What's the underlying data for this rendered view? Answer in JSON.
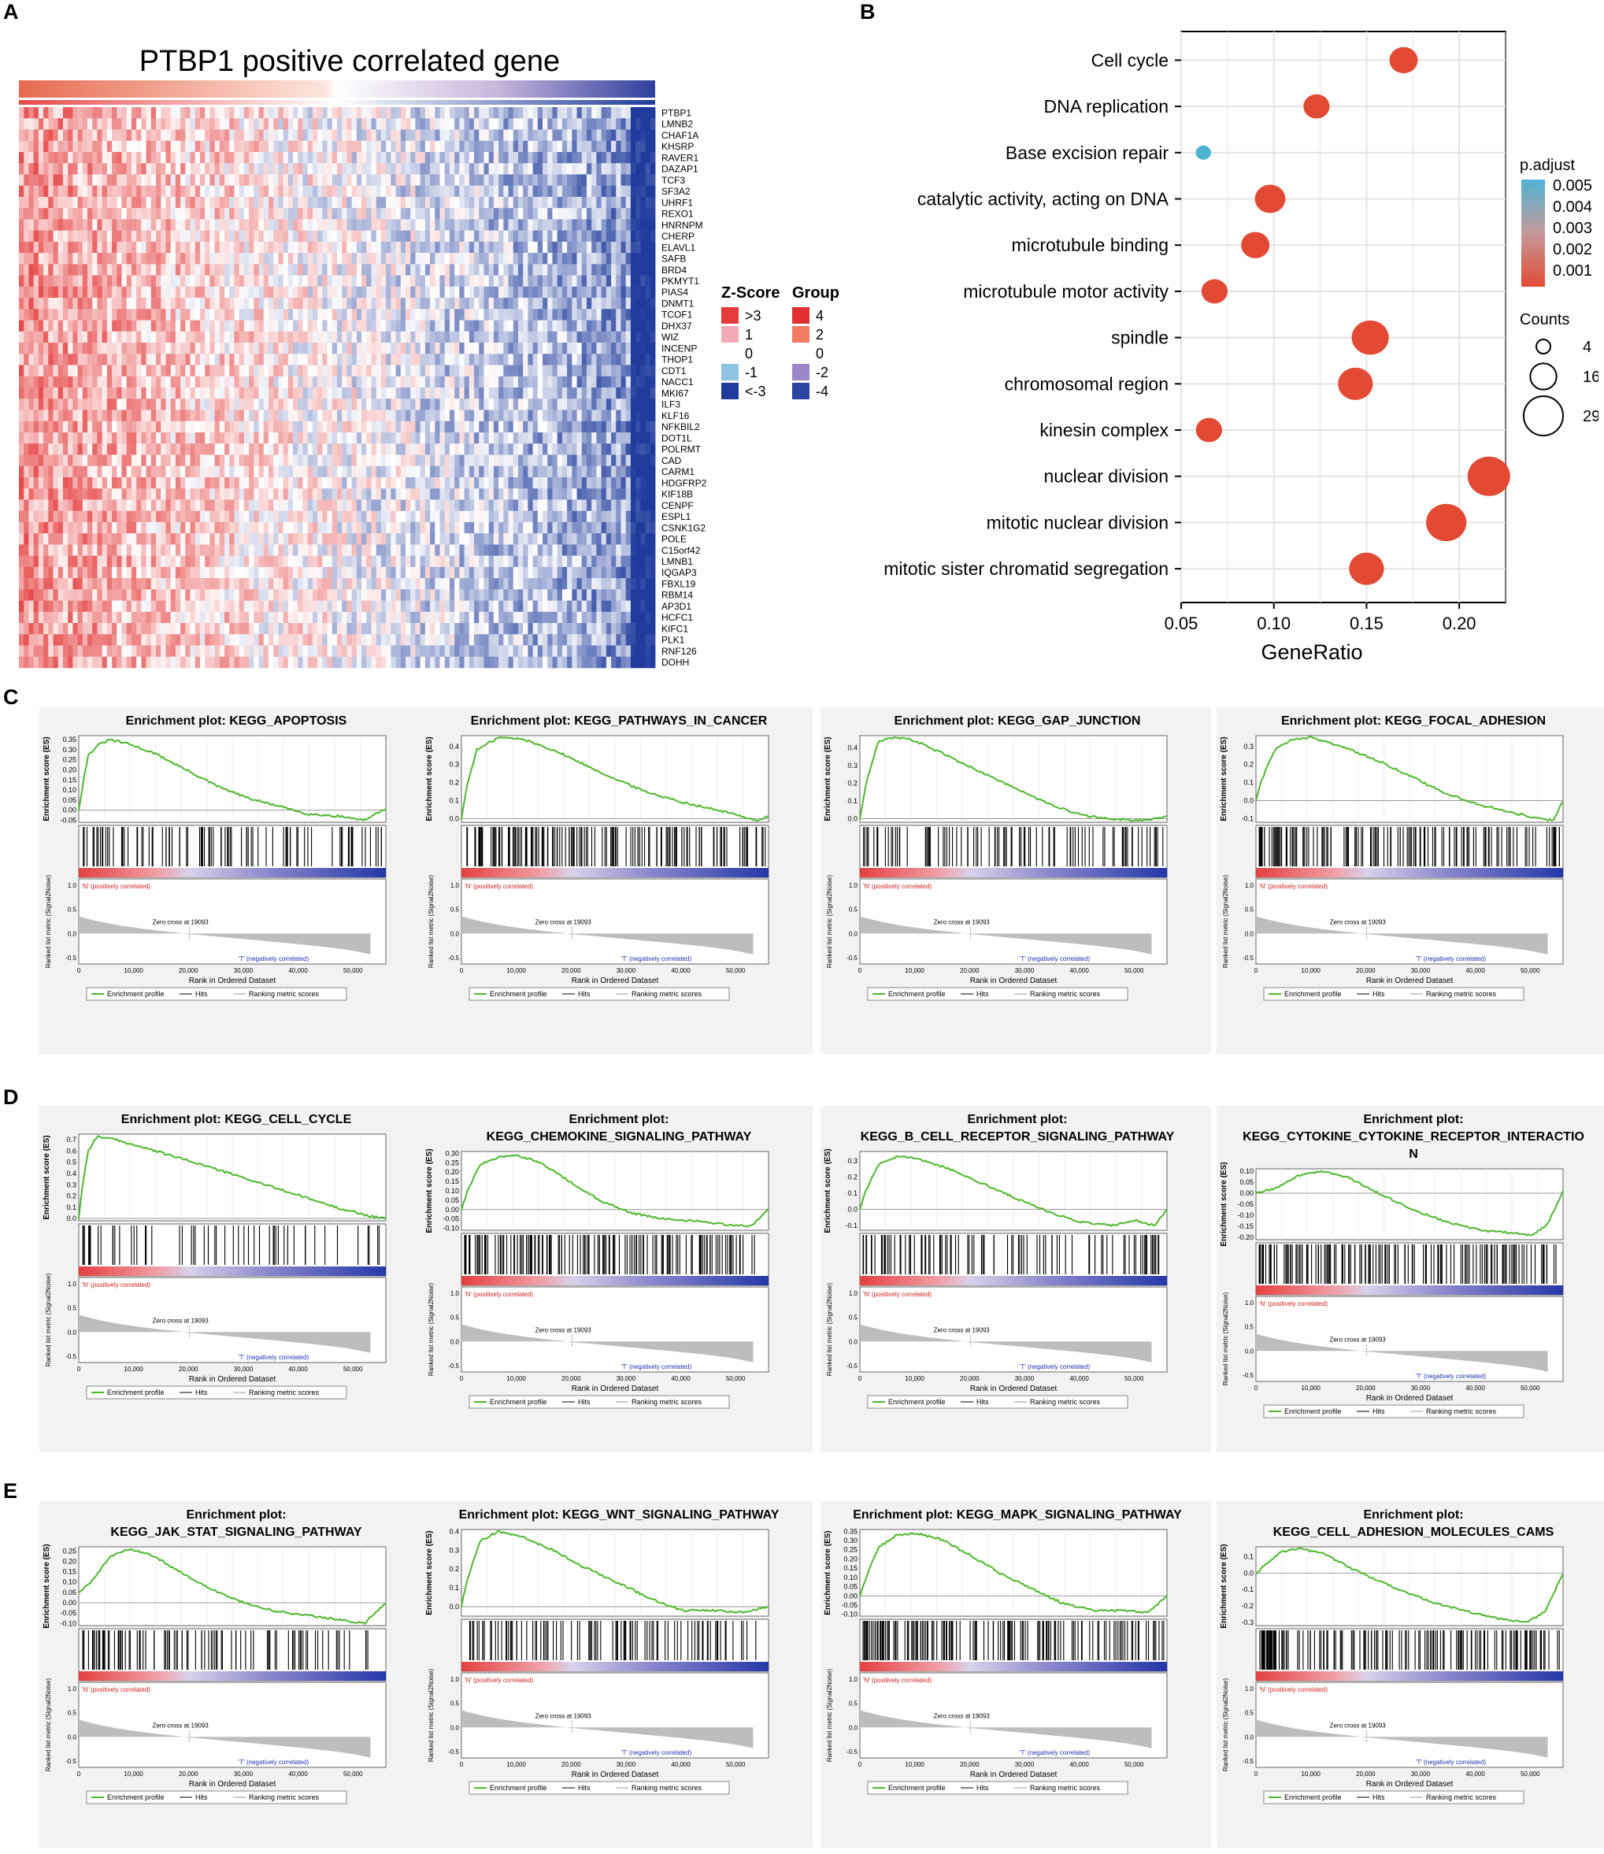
{
  "panel_labels": {
    "A": "A",
    "B": "B",
    "C": "C",
    "D": "D",
    "E": "E"
  },
  "colors": {
    "heat_red": "#e43b3b",
    "heat_pink": "#f4a9b6",
    "heat_white": "#ffffff",
    "heat_lightblue": "#8fc3e3",
    "heat_blue": "#1f3c9c",
    "dot_low": "#e34a33",
    "dot_high": "#4eb3d3",
    "gsea_green": "#4db82b",
    "gsea_bar_gray": "#bdbdbd"
  },
  "chart_data": [
    {
      "id": "A",
      "type": "heatmap",
      "title": "PTBP1 positive correlated gene",
      "genes": [
        "PTBP1",
        "LMNB2",
        "CHAF1A",
        "KHSRP",
        "RAVER1",
        "DAZAP1",
        "TCF3",
        "SF3A2",
        "UHRF1",
        "REXO1",
        "HNRNPM",
        "CHERP",
        "ELAVL1",
        "SAFB",
        "BRD4",
        "PKMYT1",
        "PIAS4",
        "DNMT1",
        "TCOF1",
        "DHX37",
        "WIZ",
        "INCENP",
        "THOP1",
        "CDT1",
        "NACC1",
        "MKI67",
        "ILF3",
        "KLF16",
        "NFKBIL2",
        "DOT1L",
        "POLRMT",
        "CAD",
        "CARM1",
        "HDGFRP2",
        "KIF18B",
        "CENPF",
        "ESPL1",
        "CSNK1G2",
        "POLE",
        "C15orf42",
        "LMNB1",
        "IQGAP3",
        "FBXL19",
        "RBM14",
        "AP3D1",
        "HCFC1",
        "KIFC1",
        "PLK1",
        "RNF126",
        "DOHH"
      ],
      "legend_zscore": {
        "title": "Z-Score",
        "labels": [
          ">3",
          "1",
          "0",
          "-1",
          "<-3"
        ]
      },
      "legend_group": {
        "title": "Group",
        "labels": [
          "4",
          "2",
          "0",
          "-2",
          "-4"
        ]
      }
    },
    {
      "id": "B",
      "type": "scatter",
      "xlabel": "GeneRatio",
      "xlim": [
        0.05,
        0.225
      ],
      "xticks": [
        "0.05",
        "0.10",
        "0.15",
        "0.20"
      ],
      "categories": [
        "Cell cycle",
        "DNA replication",
        "Base excision repair",
        "catalytic activity, acting on DNA",
        "microtubule binding",
        "microtubule motor activity",
        "spindle",
        "chromosomal region",
        "kinesin complex",
        "nuclear division",
        "mitotic nuclear division",
        "mitotic sister chromatid segregation"
      ],
      "gene_ratio": [
        0.17,
        0.123,
        0.062,
        0.098,
        0.09,
        0.068,
        0.152,
        0.144,
        0.065,
        0.216,
        0.193,
        0.15
      ],
      "counts": [
        16,
        14,
        4,
        18,
        16,
        14,
        24,
        22,
        14,
        29,
        27,
        22
      ],
      "p_adjust": [
        0.0005,
        0.0005,
        0.005,
        0.0005,
        0.0005,
        0.0005,
        0.0005,
        0.0005,
        0.0005,
        0.0005,
        0.0005,
        0.0005
      ],
      "legend_color": {
        "title": "p.adjust",
        "labels": [
          "0.005",
          "0.004",
          "0.003",
          "0.002",
          "0.001"
        ]
      },
      "legend_size": {
        "title": "Counts",
        "labels": [
          "4",
          "16",
          "29"
        ]
      }
    }
  ],
  "gsea_common": {
    "ylabel_es": "Enrichment score (ES)",
    "ylabel_metric": "Ranked list metric (Signal2Noise)",
    "xlabel": "Rank in Ordered Dataset",
    "xticks": [
      "0",
      "10,000",
      "20,000",
      "30,000",
      "40,000",
      "50,000"
    ],
    "metric_ticks": [
      "1.0",
      "0.5",
      "0.0",
      "-0.5"
    ],
    "pos_label": "'N' (positively correlated)",
    "neg_label": "'T' (negatively correlated)",
    "zero_cross": "Zero cross at 19093",
    "legend": [
      "Enrichment profile",
      "Hits",
      "Ranking metric scores"
    ]
  },
  "gsea_plots": [
    {
      "panel": "C",
      "title_lines": [
        "Enrichment plot: KEGG_APOPTOSIS"
      ],
      "es_ticks": [
        "0.35",
        "0.30",
        "0.25",
        "0.20",
        "0.15",
        "0.10",
        "0.05",
        "0.00",
        "-0.05"
      ],
      "ymin": -0.06,
      "ymax": 0.37,
      "curve": [
        [
          0,
          0.0
        ],
        [
          1,
          0.1
        ],
        [
          3,
          0.27
        ],
        [
          6,
          0.32
        ],
        [
          10,
          0.35
        ],
        [
          16,
          0.33
        ],
        [
          25,
          0.28
        ],
        [
          35,
          0.2
        ],
        [
          45,
          0.12
        ],
        [
          55,
          0.06
        ],
        [
          65,
          0.02
        ],
        [
          75,
          -0.02
        ],
        [
          85,
          -0.03
        ],
        [
          93,
          -0.05
        ],
        [
          100,
          0.01
        ]
      ],
      "hit_density": "medium",
      "zero_cross": "Zero cross at 19093"
    },
    {
      "panel": "C",
      "title_lines": [
        "Enrichment plot: KEGG_PATHWAYS_IN_CANCER"
      ],
      "es_ticks": [
        "0.4",
        "0.3",
        "0.2",
        "0.1",
        "0.0"
      ],
      "ymin": -0.02,
      "ymax": 0.46,
      "curve": [
        [
          0,
          0.0
        ],
        [
          2,
          0.2
        ],
        [
          5,
          0.38
        ],
        [
          12,
          0.45
        ],
        [
          20,
          0.44
        ],
        [
          30,
          0.38
        ],
        [
          40,
          0.3
        ],
        [
          50,
          0.22
        ],
        [
          60,
          0.15
        ],
        [
          70,
          0.1
        ],
        [
          80,
          0.06
        ],
        [
          90,
          0.02
        ],
        [
          96,
          -0.01
        ],
        [
          100,
          0.01
        ]
      ],
      "hit_density": "dense",
      "zero_cross": "Zero cross at 19093"
    },
    {
      "panel": "C",
      "title_lines": [
        "Enrichment plot: KEGG_GAP_JUNCTION"
      ],
      "es_ticks": [
        "0.4",
        "0.3",
        "0.2",
        "0.1",
        "0.0"
      ],
      "ymin": -0.02,
      "ymax": 0.47,
      "curve": [
        [
          0,
          0.0
        ],
        [
          2,
          0.2
        ],
        [
          6,
          0.44
        ],
        [
          12,
          0.46
        ],
        [
          18,
          0.44
        ],
        [
          28,
          0.36
        ],
        [
          40,
          0.26
        ],
        [
          52,
          0.16
        ],
        [
          62,
          0.08
        ],
        [
          72,
          0.02
        ],
        [
          82,
          0.0
        ],
        [
          92,
          -0.01
        ],
        [
          100,
          0.01
        ]
      ],
      "hit_density": "medium",
      "zero_cross": "Zero cross at 19093"
    },
    {
      "panel": "C",
      "title_lines": [
        "Enrichment plot: KEGG_FOCAL_ADHESION"
      ],
      "es_ticks": [
        "0.3",
        "0.2",
        "0.1",
        "0.0",
        "-0.1"
      ],
      "ymin": -0.12,
      "ymax": 0.36,
      "curve": [
        [
          0,
          0.0
        ],
        [
          2,
          0.12
        ],
        [
          6,
          0.28
        ],
        [
          12,
          0.34
        ],
        [
          18,
          0.35
        ],
        [
          28,
          0.3
        ],
        [
          40,
          0.22
        ],
        [
          52,
          0.12
        ],
        [
          62,
          0.04
        ],
        [
          72,
          -0.02
        ],
        [
          82,
          -0.06
        ],
        [
          92,
          -0.1
        ],
        [
          97,
          -0.11
        ],
        [
          100,
          0.0
        ]
      ],
      "hit_density": "dense",
      "zero_cross": "Zero cross at 19093"
    },
    {
      "panel": "D",
      "title_lines": [
        "Enrichment plot: KEGG_CELL_CYCLE"
      ],
      "es_ticks": [
        "0.7",
        "0.6",
        "0.5",
        "0.4",
        "0.3",
        "0.2",
        "0.1",
        "0.0"
      ],
      "ymin": -0.02,
      "ymax": 0.75,
      "curve": [
        [
          0,
          0.0
        ],
        [
          1,
          0.25
        ],
        [
          3,
          0.6
        ],
        [
          6,
          0.73
        ],
        [
          12,
          0.7
        ],
        [
          25,
          0.6
        ],
        [
          40,
          0.48
        ],
        [
          55,
          0.35
        ],
        [
          70,
          0.22
        ],
        [
          85,
          0.09
        ],
        [
          95,
          0.02
        ],
        [
          100,
          0.0
        ]
      ],
      "hit_density": "sparse",
      "zero_cross": "Zero cross at 19093"
    },
    {
      "panel": "D",
      "title_lines": [
        "Enrichment plot:",
        "KEGG_CHEMOKINE_SIGNALING_PATHWAY"
      ],
      "es_ticks": [
        "0.30",
        "0.25",
        "0.20",
        "0.15",
        "0.10",
        "0.05",
        "0.00",
        "-0.05",
        "-0.10"
      ],
      "ymin": -0.11,
      "ymax": 0.31,
      "curve": [
        [
          0,
          0.0
        ],
        [
          2,
          0.1
        ],
        [
          6,
          0.24
        ],
        [
          12,
          0.28
        ],
        [
          18,
          0.29
        ],
        [
          26,
          0.25
        ],
        [
          36,
          0.14
        ],
        [
          46,
          0.04
        ],
        [
          56,
          -0.02
        ],
        [
          66,
          -0.05
        ],
        [
          76,
          -0.06
        ],
        [
          86,
          -0.08
        ],
        [
          94,
          -0.09
        ],
        [
          100,
          0.0
        ]
      ],
      "hit_density": "dense",
      "zero_cross": "Zero cross at 19093"
    },
    {
      "panel": "D",
      "title_lines": [
        "Enrichment plot:",
        "KEGG_B_CELL_RECEPTOR_SIGNALING_PATHWAY"
      ],
      "es_ticks": [
        "0.3",
        "0.2",
        "0.1",
        "0.0",
        "-0.1"
      ],
      "ymin": -0.13,
      "ymax": 0.36,
      "curve": [
        [
          0,
          0.0
        ],
        [
          2,
          0.12
        ],
        [
          6,
          0.28
        ],
        [
          12,
          0.33
        ],
        [
          18,
          0.32
        ],
        [
          28,
          0.26
        ],
        [
          40,
          0.16
        ],
        [
          52,
          0.06
        ],
        [
          62,
          -0.02
        ],
        [
          72,
          -0.08
        ],
        [
          82,
          -0.1
        ],
        [
          90,
          -0.07
        ],
        [
          96,
          -0.1
        ],
        [
          100,
          0.0
        ]
      ],
      "hit_density": "medium",
      "zero_cross": "Zero cross at 19093"
    },
    {
      "panel": "D",
      "title_lines": [
        "Enrichment plot:",
        "KEGG_CYTOKINE_CYTOKINE_RECEPTOR_INTERACTIO",
        "N"
      ],
      "es_ticks": [
        "0.10",
        "0.05",
        "0.00",
        "-0.05",
        "-0.10",
        "-0.15",
        "-0.20"
      ],
      "ymin": -0.21,
      "ymax": 0.11,
      "curve": [
        [
          0,
          0.0
        ],
        [
          6,
          0.02
        ],
        [
          14,
          0.08
        ],
        [
          22,
          0.1
        ],
        [
          30,
          0.07
        ],
        [
          40,
          0.0
        ],
        [
          52,
          -0.08
        ],
        [
          62,
          -0.13
        ],
        [
          74,
          -0.17
        ],
        [
          84,
          -0.18
        ],
        [
          90,
          -0.19
        ],
        [
          95,
          -0.14
        ],
        [
          100,
          0.01
        ]
      ],
      "hit_density": "dense",
      "zero_cross": "Zero cross at 19093"
    },
    {
      "panel": "E",
      "title_lines": [
        "Enrichment plot:",
        "KEGG_JAK_STAT_SIGNALING_PATHWAY"
      ],
      "es_ticks": [
        "0.25",
        "0.20",
        "0.15",
        "0.10",
        "0.05",
        "0.00",
        "-0.05",
        "-0.10"
      ],
      "ymin": -0.11,
      "ymax": 0.27,
      "curve": [
        [
          0,
          0.05
        ],
        [
          4,
          0.1
        ],
        [
          10,
          0.22
        ],
        [
          16,
          0.26
        ],
        [
          24,
          0.23
        ],
        [
          34,
          0.14
        ],
        [
          44,
          0.06
        ],
        [
          54,
          0.0
        ],
        [
          64,
          -0.04
        ],
        [
          74,
          -0.06
        ],
        [
          84,
          -0.08
        ],
        [
          93,
          -0.1
        ],
        [
          100,
          0.0
        ]
      ],
      "hit_density": "medium",
      "zero_cross": "Zero cross at 19093"
    },
    {
      "panel": "E",
      "title_lines": [
        "Enrichment plot: KEGG_WNT_SIGNALING_PATHWAY"
      ],
      "es_ticks": [
        "0.4",
        "0.3",
        "0.2",
        "0.1",
        "0.0"
      ],
      "ymin": -0.05,
      "ymax": 0.41,
      "curve": [
        [
          0,
          0.0
        ],
        [
          2,
          0.15
        ],
        [
          6,
          0.35
        ],
        [
          12,
          0.4
        ],
        [
          20,
          0.37
        ],
        [
          30,
          0.3
        ],
        [
          40,
          0.21
        ],
        [
          52,
          0.12
        ],
        [
          62,
          0.04
        ],
        [
          72,
          -0.02
        ],
        [
          82,
          -0.02
        ],
        [
          92,
          -0.03
        ],
        [
          100,
          0.0
        ]
      ],
      "hit_density": "medium",
      "zero_cross": "Zero cross at 19093"
    },
    {
      "panel": "E",
      "title_lines": [
        "Enrichment plot: KEGG_MAPK_SIGNALING_PATHWAY"
      ],
      "es_ticks": [
        "0.35",
        "0.30",
        "0.25",
        "0.20",
        "0.15",
        "0.10",
        "0.05",
        "0.00",
        "-0.05",
        "-0.10"
      ],
      "ymin": -0.11,
      "ymax": 0.36,
      "curve": [
        [
          0,
          0.0
        ],
        [
          2,
          0.1
        ],
        [
          6,
          0.26
        ],
        [
          12,
          0.33
        ],
        [
          18,
          0.34
        ],
        [
          26,
          0.31
        ],
        [
          36,
          0.22
        ],
        [
          46,
          0.12
        ],
        [
          56,
          0.04
        ],
        [
          66,
          -0.04
        ],
        [
          76,
          -0.08
        ],
        [
          86,
          -0.08
        ],
        [
          94,
          -0.09
        ],
        [
          100,
          0.0
        ]
      ],
      "hit_density": "dense",
      "zero_cross": "Zero cross at 19093"
    },
    {
      "panel": "E",
      "title_lines": [
        "Enrichment plot:",
        "KEGG_CELL_ADHESION_MOLECULES_CAMS"
      ],
      "es_ticks": [
        "0.1",
        "0.0",
        "-0.1",
        "-0.2",
        "-0.3"
      ],
      "ymin": -0.32,
      "ymax": 0.16,
      "curve": [
        [
          0,
          0.0
        ],
        [
          3,
          0.05
        ],
        [
          8,
          0.13
        ],
        [
          14,
          0.15
        ],
        [
          22,
          0.12
        ],
        [
          32,
          0.02
        ],
        [
          44,
          -0.08
        ],
        [
          56,
          -0.17
        ],
        [
          68,
          -0.23
        ],
        [
          80,
          -0.28
        ],
        [
          88,
          -0.3
        ],
        [
          94,
          -0.24
        ],
        [
          100,
          0.0
        ]
      ],
      "hit_density": "dense",
      "zero_cross": "Zero cross at 19093"
    }
  ]
}
